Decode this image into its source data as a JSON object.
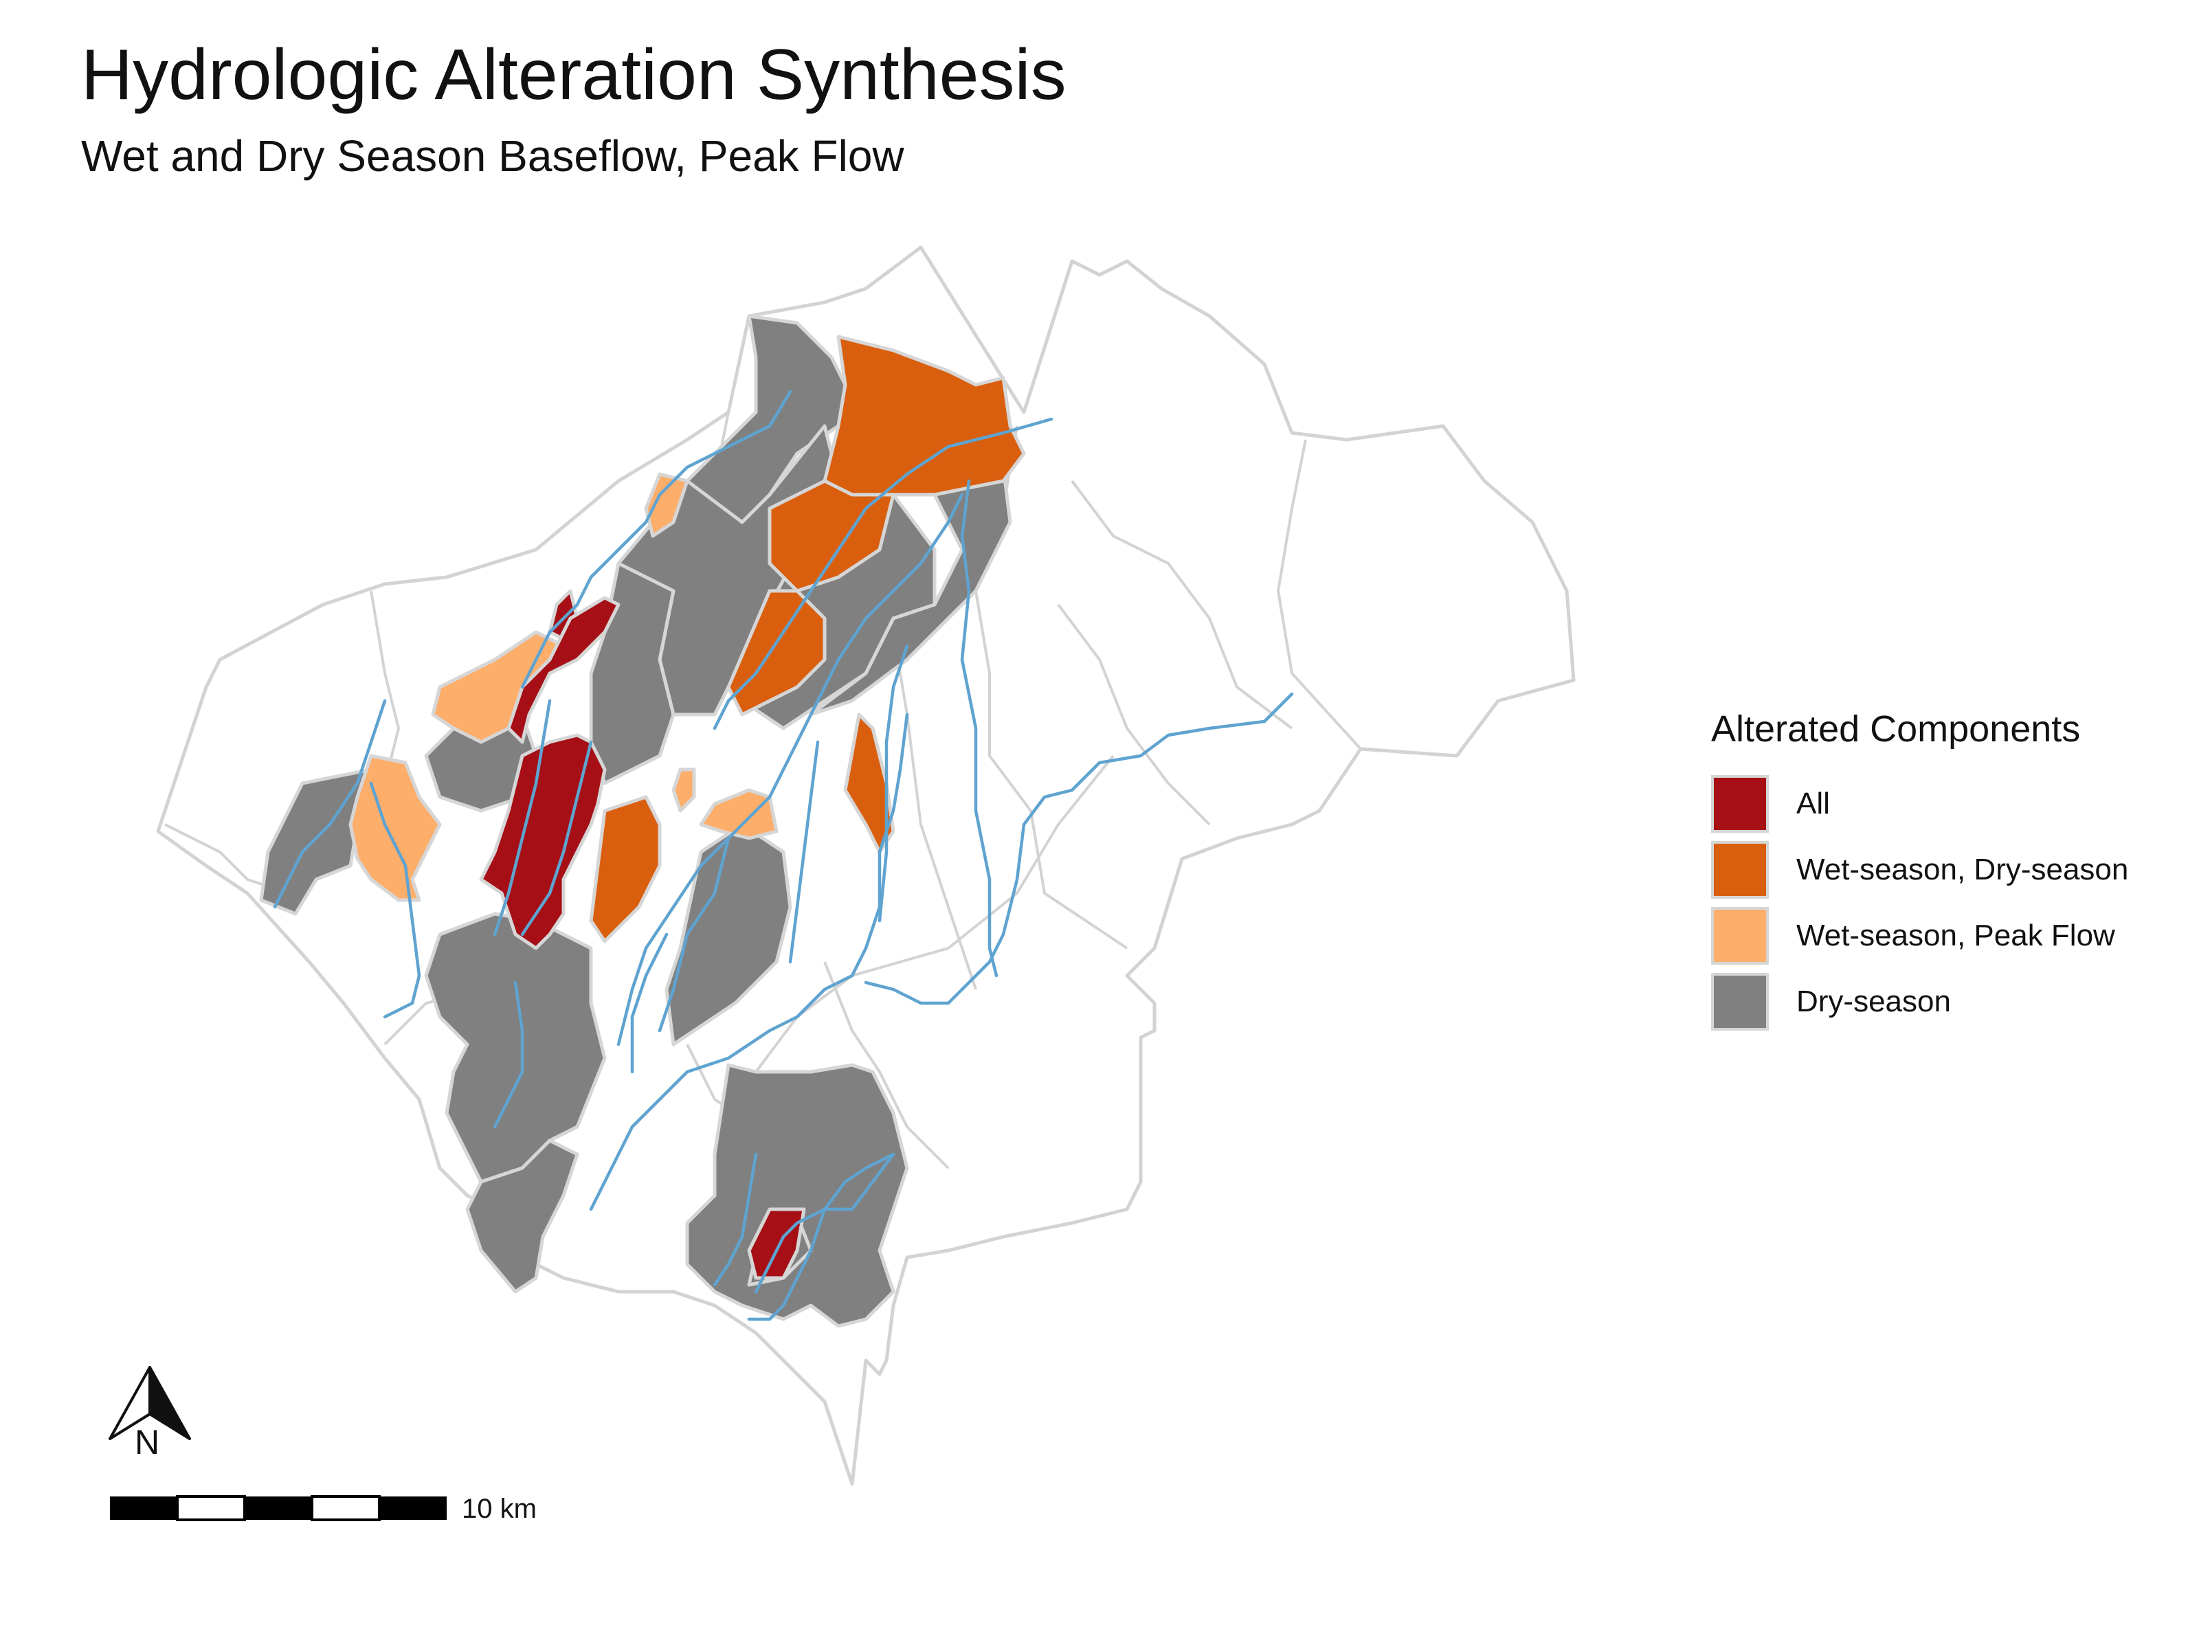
{
  "title": "Hydrologic Alteration Synthesis",
  "subtitle": "Wet and Dry Season Baseflow, Peak Flow",
  "legend": {
    "title": "Alterated Components",
    "items": [
      {
        "label": "All",
        "color": "#a50f15"
      },
      {
        "label": "Wet-season, Dry-season",
        "color": "#d95f0e"
      },
      {
        "label": "Wet-season, Peak Flow",
        "color": "#fdae6b"
      },
      {
        "label": "Dry-season",
        "color": "#808080"
      }
    ]
  },
  "scale_bar": {
    "label": "10 km"
  },
  "north_arrow": {
    "label": "N"
  },
  "colors": {
    "boundary": "#d3d3d3",
    "river": "#5fa3d0",
    "all": "#a50f15",
    "wet_dry": "#d95f0e",
    "wet_peak": "#fdae6b",
    "dry": "#808080"
  }
}
